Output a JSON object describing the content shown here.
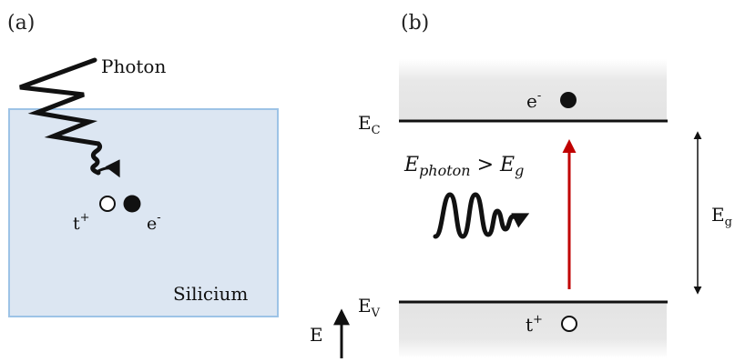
{
  "panel_a": {
    "label": "(a)",
    "photon_label": "Photon",
    "material_label": "Silicium",
    "hole_label": "t",
    "hole_sup": "+",
    "electron_label": "e",
    "electron_sup": "-",
    "colors": {
      "box_fill": "#dce6f2",
      "box_stroke": "#9dc3e6"
    }
  },
  "panel_b": {
    "label": "(b)",
    "conduction_label": "E",
    "conduction_sub": "C",
    "valence_label": "E",
    "valence_sub": "V",
    "gap_label": "E",
    "gap_sub": "g",
    "energy_axis_label": "E",
    "electron_label": "e",
    "electron_sup": "-",
    "hole_label": "t",
    "hole_sup": "+",
    "condition_main1": "E",
    "condition_sub1": "photon",
    "condition_op": " > ",
    "condition_main2": "E",
    "condition_sub2": "g",
    "colors": {
      "band_fill": "#e6e6e6",
      "transition_arrow": "#c00000"
    }
  }
}
